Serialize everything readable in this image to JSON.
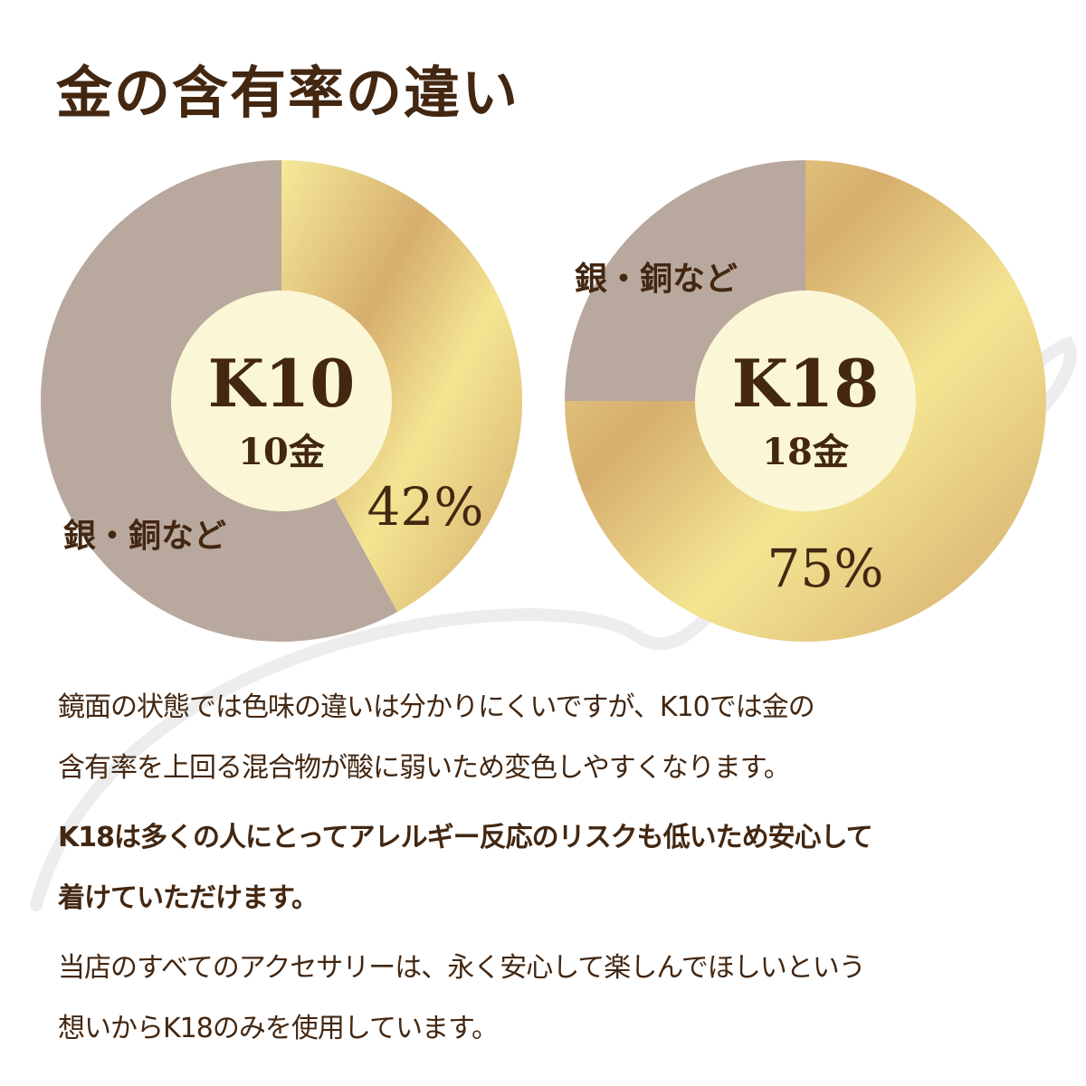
{
  "title": "金の含有率の違い",
  "colors": {
    "text": "#432711",
    "alloy": "#b8a89d",
    "gold_light": "#f6ea9a",
    "gold_dark": "#d3aa6b",
    "center": "#fbf7d6"
  },
  "chart_data": [
    {
      "type": "pie",
      "donut": true,
      "center_title": "K10",
      "center_subtitle": "10金",
      "slices": [
        {
          "label": "",
          "value": 42,
          "value_label": "42%"
        },
        {
          "label": "銀・銅など",
          "value": 58
        }
      ]
    },
    {
      "type": "pie",
      "donut": true,
      "center_title": "K18",
      "center_subtitle": "18金",
      "slices": [
        {
          "label": "",
          "value": 75,
          "value_label": "75%"
        },
        {
          "label": "銀・銅など",
          "value": 25
        }
      ]
    }
  ],
  "paragraphs": [
    {
      "lines": [
        "鏡面の状態では色味の違いは分かりにくいですが、K10では金の",
        "含有率を上回る混合物が酸に弱いため変色しやすくなります。"
      ]
    },
    {
      "lines": [
        "K18は多くの人にとってアレルギー反応のリスクも低いため安心して",
        "着けていただけます。"
      ]
    },
    {
      "lines": [
        "当店のすべてのアクセサリーは、永く安心して楽しんでほしいという",
        "想いからK18のみを使用しています。"
      ]
    }
  ]
}
